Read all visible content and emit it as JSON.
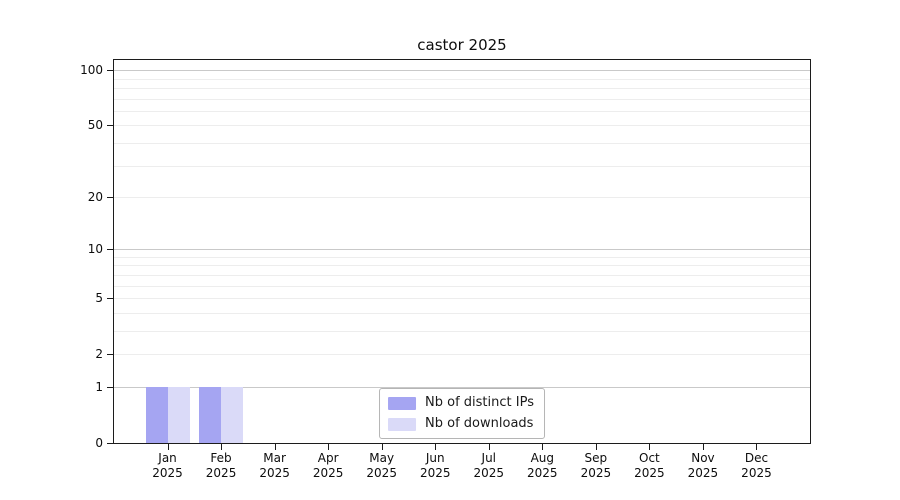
{
  "title": "castor 2025",
  "chart_data": {
    "type": "bar",
    "title": "castor 2025",
    "categories": [
      "Jan 2025",
      "Feb 2025",
      "Mar 2025",
      "Apr 2025",
      "May 2025",
      "Jun 2025",
      "Jul 2025",
      "Aug 2025",
      "Sep 2025",
      "Oct 2025",
      "Nov 2025",
      "Dec 2025"
    ],
    "series": [
      {
        "name": "Nb of distinct IPs",
        "color": "#a5a5f2",
        "values": [
          1,
          1,
          0,
          0,
          0,
          0,
          0,
          0,
          0,
          0,
          0,
          0
        ]
      },
      {
        "name": "Nb of downloads",
        "color": "#dadaf8",
        "values": [
          1,
          1,
          0,
          0,
          0,
          0,
          0,
          0,
          0,
          0,
          0,
          0
        ]
      }
    ],
    "xlabel": "",
    "ylabel": "",
    "yscale": "log1p",
    "ylim": [
      0,
      113.5
    ],
    "ytick_values": [
      0,
      1,
      2,
      5,
      10,
      20,
      50,
      100
    ],
    "major_grid_values": [
      1,
      10,
      100
    ],
    "minor_grid_values": [
      2,
      3,
      4,
      5,
      6,
      7,
      8,
      9,
      20,
      30,
      40,
      50,
      60,
      70,
      80,
      90
    ],
    "grid": true,
    "legend_position": "lower center",
    "bar_value_jan_feb": 1
  }
}
